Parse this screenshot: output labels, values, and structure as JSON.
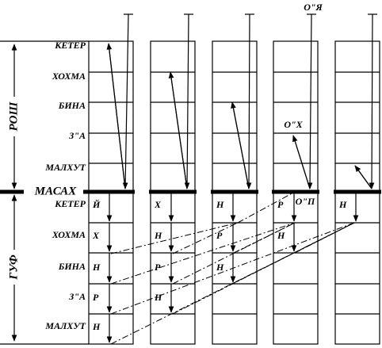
{
  "rosh": "РОШ",
  "guf": "ГУФ",
  "masach": "МАСАХ",
  "rosh_levels": [
    "КЕТЕР",
    "ХОХМА",
    "БИНА",
    "З\"А",
    "МАЛХУТ"
  ],
  "guf_levels": [
    "КЕТЕР",
    "ХОХМА",
    "БИНА",
    "З\"А",
    "МАЛХУТ"
  ],
  "annotations": {
    "oya": "О\"Я",
    "okh": "О\"Х",
    "op": "О\"П"
  },
  "columns": [
    [
      "Й",
      "Х",
      "Н",
      "Р",
      "Н"
    ],
    [
      "Х",
      "Н",
      "Р",
      "Н"
    ],
    [
      "Н",
      "Р",
      "Н"
    ],
    [
      "Р",
      "Н"
    ],
    [
      "Н"
    ]
  ]
}
